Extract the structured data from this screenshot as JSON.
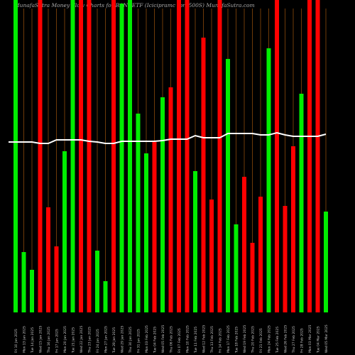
{
  "chart_data": {
    "type": "bar",
    "title": "MunafaSutra  Money Flow  Charts for   BANKETF   (Icicipramc  Ipru500S) MunafaSutra.com",
    "categories": [
      "Fri 10 Jan 2025",
      "Mon 13 Jan 2025",
      "Tue 14 Jan 2025",
      "Wed 15 Jan 2025",
      "Thu 16 Jan 2025",
      "Fri 17 Jan 2025",
      "Mon 20 Jan 2025",
      "Tue 21 Jan 2025",
      "Wed 22 Jan 2025",
      "Thu 23 Jan 2025",
      "Fri 24 Jan 2025",
      "Mon 27 Jan 2025",
      "Tue 28 Jan 2025",
      "Wed 29 Jan 2025",
      "Thu 30 Jan 2025",
      "Fri 31 Jan 2025",
      "Mon 03 Feb 2025",
      "Tue 04 Feb 2025",
      "Wed 05 Feb 2025",
      "Thu 06 Feb 2025",
      "Fri 07 Feb 2025",
      "Mon 10 Feb 2025",
      "Tue 11 Feb 2025",
      "Wed 12 Feb 2025",
      "Thu 13 Feb 2025",
      "Fri 14 Feb 2025",
      "Mon 17 Feb 2025",
      "Tue 18 Feb 2025",
      "Wed 19 Feb 2025",
      "Thu 20 Feb 2025",
      "Fri 21 Feb 2025",
      "Mon 24 Feb 2025",
      "Tue 25 Feb 2025",
      "Wed 26 Feb 2025",
      "Thu 27 Feb 2025",
      "Fri 28 Feb 2025",
      "Mon 03 Mar 2025",
      "Tue 04 Mar 2025",
      "Wed 05 Mar 2025"
    ],
    "series": [
      {
        "name": "Money flow",
        "values": [
          440,
          85,
          60,
          440,
          148,
          93,
          227,
          440,
          440,
          440,
          87,
          44,
          440,
          435,
          440,
          280,
          224,
          240,
          303,
          317,
          440,
          440,
          199,
          387,
          159,
          440,
          357,
          124,
          191,
          98,
          163,
          372,
          440,
          150,
          234,
          308,
          440,
          440,
          142
        ],
        "colors": [
          "green",
          "green",
          "green",
          "red",
          "red",
          "red",
          "green",
          "green",
          "red",
          "red",
          "green",
          "green",
          "red",
          "green",
          "green",
          "green",
          "green",
          "red",
          "green",
          "red",
          "red",
          "red",
          "green",
          "red",
          "red",
          "red",
          "green",
          "green",
          "red",
          "red",
          "red",
          "green",
          "red",
          "red",
          "red",
          "green",
          "red",
          "red",
          "green"
        ]
      },
      {
        "name": "Flow line",
        "color": "#ffffff",
        "values": [
          240,
          240,
          240,
          238,
          238,
          243,
          243,
          243,
          243,
          241,
          240,
          238,
          238,
          241,
          241,
          241,
          241,
          241,
          242,
          244,
          244,
          244,
          249,
          246,
          246,
          246,
          252,
          252,
          252,
          252,
          250,
          250,
          253,
          250,
          248,
          248,
          248,
          248,
          251
        ]
      }
    ],
    "grid": true,
    "grid_color": "#8b4a0a",
    "background": "#000000"
  }
}
